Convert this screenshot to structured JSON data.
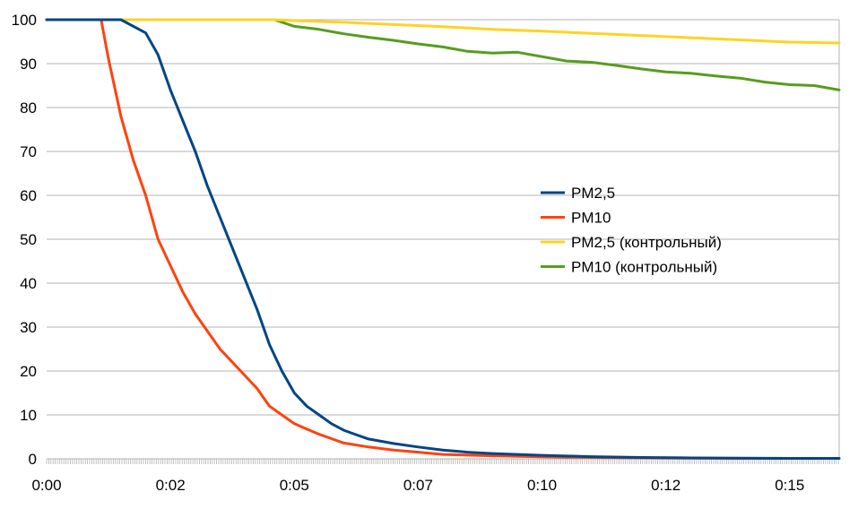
{
  "chart_data": {
    "type": "line",
    "title": "",
    "xlabel": "",
    "ylabel": "",
    "ylim": [
      0,
      100
    ],
    "xlim_minutes": [
      0,
      16
    ],
    "y_ticks": [
      "0",
      "10",
      "20",
      "30",
      "40",
      "50",
      "60",
      "70",
      "80",
      "90",
      "100"
    ],
    "x_ticks": [
      {
        "minute": 0,
        "label": "0:00"
      },
      {
        "minute": 2.5,
        "label": "0:02"
      },
      {
        "minute": 5,
        "label": "0:05"
      },
      {
        "minute": 7.5,
        "label": "0:07"
      },
      {
        "minute": 10,
        "label": "0:10"
      },
      {
        "minute": 12.5,
        "label": "0:12"
      },
      {
        "minute": 15,
        "label": "0:15"
      }
    ],
    "grid": true,
    "legend_position": "center-right",
    "series": [
      {
        "name": "PM2,5",
        "color": "#004586",
        "x": [
          0,
          1.5,
          2.0,
          2.25,
          2.5,
          2.75,
          3.0,
          3.25,
          3.5,
          3.75,
          4.0,
          4.25,
          4.5,
          4.75,
          5.0,
          5.25,
          5.5,
          5.75,
          6.0,
          6.25,
          6.5,
          7.0,
          7.5,
          8.0,
          8.5,
          9.0,
          9.5,
          10.0,
          11.0,
          12.0,
          13.0,
          14.0,
          15.0,
          16.0
        ],
        "values": [
          100,
          100,
          97,
          92,
          84,
          77,
          70,
          62,
          55,
          48,
          41,
          34,
          26,
          20,
          15,
          12,
          10,
          8,
          6.5,
          5.5,
          4.5,
          3.5,
          2.7,
          2.0,
          1.5,
          1.2,
          1.0,
          0.8,
          0.5,
          0.3,
          0.2,
          0.15,
          0.1,
          0.1
        ]
      },
      {
        "name": "PM10",
        "color": "#ff420e",
        "x": [
          0,
          1.1,
          1.25,
          1.5,
          1.75,
          2.0,
          2.25,
          2.5,
          2.75,
          3.0,
          3.25,
          3.5,
          3.75,
          4.0,
          4.25,
          4.5,
          4.75,
          5.0,
          5.25,
          5.5,
          5.75,
          6.0,
          6.5,
          7.0,
          7.5,
          8.0,
          9.0,
          10.0,
          11.0,
          12.0,
          13.0,
          14.0,
          15.0,
          16.0
        ],
        "values": [
          100,
          100,
          91,
          78,
          68,
          60,
          50,
          44,
          38,
          33,
          29,
          25,
          22,
          19,
          16,
          12,
          10,
          8,
          6.8,
          5.6,
          4.6,
          3.6,
          2.7,
          2.0,
          1.5,
          1.0,
          0.7,
          0.45,
          0.3,
          0.2,
          0.15,
          0.1,
          0.1,
          0.1
        ]
      },
      {
        "name": "PM2,5 (контрольный)",
        "color": "#ffd320",
        "x": [
          0,
          4.6,
          5.0,
          6.0,
          7.0,
          8.0,
          9.0,
          10.0,
          11.0,
          12.0,
          13.0,
          14.0,
          15.0,
          16.0
        ],
        "values": [
          100,
          100,
          99.8,
          99.4,
          98.9,
          98.4,
          97.8,
          97.4,
          96.9,
          96.4,
          95.9,
          95.4,
          94.9,
          94.7
        ]
      },
      {
        "name": "PM10 (контрольный)",
        "color": "#579d1c",
        "x": [
          0,
          4.6,
          5.0,
          5.5,
          6.0,
          6.5,
          7.0,
          7.5,
          8.0,
          8.5,
          9.0,
          9.5,
          10.0,
          10.5,
          11.0,
          11.5,
          12.0,
          12.5,
          13.0,
          13.5,
          14.0,
          14.5,
          15.0,
          15.5,
          16.0
        ],
        "values": [
          100,
          100,
          98.5,
          97.8,
          96.8,
          96.0,
          95.3,
          94.5,
          93.8,
          92.8,
          92.4,
          92.6,
          91.6,
          90.6,
          90.3,
          89.6,
          88.8,
          88.1,
          87.8,
          87.2,
          86.7,
          85.8,
          85.2,
          85.0,
          84.0
        ]
      }
    ]
  }
}
